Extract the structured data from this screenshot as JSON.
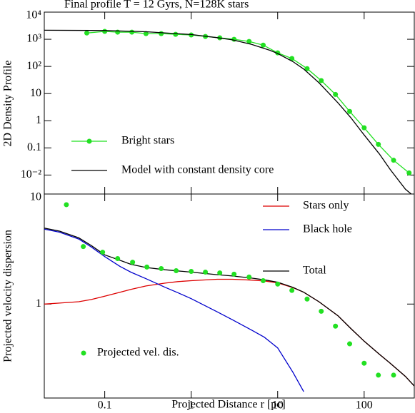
{
  "chart_data": [
    {
      "type": "line",
      "title": "Final profile T = 12 Gyrs, N=128K stars",
      "ylabel": "2D Density Profile",
      "xlog": true,
      "ylog": true,
      "xlim": [
        0.02,
        380
      ],
      "ylim": [
        0.002,
        10000
      ],
      "xticks": [
        0.1,
        1,
        10,
        100
      ],
      "yticks": [
        {
          "value": 10000,
          "label": "10⁴"
        },
        {
          "value": 1000,
          "label": "10³"
        },
        {
          "value": 100,
          "label": "10²"
        },
        10,
        1,
        0.1,
        {
          "value": 0.01,
          "label": "10⁻²"
        }
      ],
      "legend": "bottom left",
      "series": [
        {
          "name": "Bright stars",
          "color": "#22e022",
          "line": true,
          "marker": true,
          "x": [
            0.062,
            0.1,
            0.141,
            0.206,
            0.3,
            0.45,
            0.66,
            1,
            1.46,
            2.14,
            3.13,
            4.67,
            6.8,
            10,
            14.6,
            21.9,
            31.9,
            46.6,
            68,
            100,
            146,
            219,
            331
          ],
          "values": [
            1700,
            1950,
            1830,
            1830,
            1620,
            1620,
            1520,
            1440,
            1270,
            1130,
            1000,
            830,
            610,
            316,
            196,
            83,
            30,
            9.3,
            2.2,
            0.55,
            0.135,
            0.035,
            0.012
          ]
        },
        {
          "name": "Model with constant density core",
          "color": "#000000",
          "line": true,
          "marker": false,
          "x": [
            0.02,
            0.1,
            0.3,
            1,
            2,
            3,
            5,
            8,
            10,
            15,
            20,
            30,
            50,
            70,
            100,
            150,
            200,
            300,
            350
          ],
          "values": [
            2150,
            2100,
            1900,
            1500,
            1150,
            950,
            650,
            400,
            300,
            150,
            80,
            25,
            4.5,
            1.3,
            0.3,
            0.06,
            0.016,
            0.003,
            0.002
          ]
        }
      ]
    },
    {
      "type": "line",
      "xlabel": "Projected Distance r [pc]",
      "ylabel": "Projected velocity dispersion",
      "xlog": true,
      "ylog": true,
      "xlim": [
        0.02,
        380
      ],
      "ylim": [
        0.14,
        10
      ],
      "xticks": [
        0.1,
        1,
        10,
        100
      ],
      "yticks": [
        1,
        10
      ],
      "legend": "upper right",
      "series": [
        {
          "name": "Stars only",
          "color": "#dd0000",
          "line": true,
          "marker": false,
          "x": [
            0.02,
            0.03,
            0.05,
            0.07,
            0.1,
            0.15,
            0.2,
            0.3,
            0.5,
            0.7,
            1,
            2,
            3,
            5,
            7,
            10,
            15,
            20,
            30,
            50,
            70,
            100,
            150,
            200,
            300,
            380
          ],
          "values": [
            1.0,
            1.02,
            1.05,
            1.1,
            1.18,
            1.28,
            1.36,
            1.46,
            1.55,
            1.6,
            1.63,
            1.68,
            1.68,
            1.65,
            1.62,
            1.56,
            1.41,
            1.28,
            1.05,
            0.78,
            0.6,
            0.46,
            0.35,
            0.29,
            0.22,
            0.18
          ]
        },
        {
          "name": "Black hole",
          "color": "#0000cc",
          "line": true,
          "marker": false,
          "x": [
            0.02,
            0.03,
            0.05,
            0.07,
            0.1,
            0.15,
            0.2,
            0.3,
            0.5,
            0.7,
            1,
            2,
            3,
            5,
            7,
            10,
            15,
            20
          ],
          "values": [
            4.8,
            4.5,
            3.9,
            3.3,
            2.7,
            2.2,
            1.95,
            1.7,
            1.42,
            1.27,
            1.12,
            0.85,
            0.72,
            0.58,
            0.5,
            0.4,
            0.24,
            0.16
          ]
        },
        {
          "name": "Total",
          "color": "#000000",
          "line": true,
          "marker": false,
          "x": [
            0.02,
            0.03,
            0.05,
            0.07,
            0.1,
            0.15,
            0.2,
            0.3,
            0.5,
            0.7,
            1,
            2,
            3,
            5,
            7,
            10,
            15,
            20,
            30,
            50,
            70,
            100,
            150,
            200,
            300,
            380
          ],
          "values": [
            4.9,
            4.6,
            4.0,
            3.4,
            2.8,
            2.5,
            2.3,
            2.15,
            2.05,
            2.0,
            1.95,
            1.85,
            1.8,
            1.72,
            1.66,
            1.58,
            1.42,
            1.28,
            1.05,
            0.78,
            0.6,
            0.46,
            0.35,
            0.29,
            0.22,
            0.18
          ]
        },
        {
          "name": "Projected vel. dis.",
          "color": "#22e022",
          "line": false,
          "marker": true,
          "x": [
            0.036,
            0.0565,
            0.0945,
            0.141,
            0.21,
            0.307,
            0.45,
            0.67,
            1,
            1.46,
            2.14,
            3.13,
            4.67,
            6.8,
            10,
            14.6,
            21.9,
            31.9,
            46.6,
            68,
            100,
            146,
            219
          ],
          "values": [
            8.0,
            3.33,
            2.96,
            2.59,
            2.4,
            2.17,
            2.1,
            2.01,
            1.98,
            1.95,
            1.92,
            1.87,
            1.76,
            1.63,
            1.52,
            1.33,
            1.11,
            0.86,
            0.63,
            0.435,
            0.29,
            0.226,
            0.226
          ]
        }
      ]
    }
  ]
}
